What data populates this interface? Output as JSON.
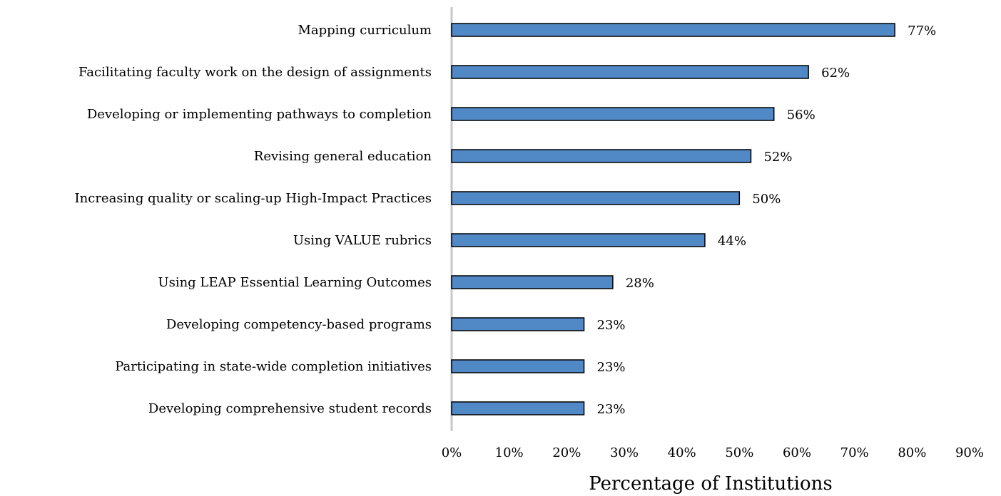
{
  "chart_data": {
    "type": "bar",
    "orientation": "horizontal",
    "x_label": "Percentage of Institutions",
    "categories": [
      "Mapping curriculum",
      "Facilitating faculty work on the design of assignments",
      "Developing or implementing pathways to completion",
      "Revising general education",
      "Increasing quality or scaling-up High-Impact Practices",
      "Using VALUE rubrics",
      "Using LEAP Essential Learning Outcomes",
      "Developing competency-based programs",
      "Participating in state-wide completion initiatives",
      "Developing comprehensive student records"
    ],
    "values": [
      77,
      62,
      56,
      52,
      50,
      44,
      28,
      23,
      23,
      23
    ],
    "value_labels": [
      "77%",
      "62%",
      "56%",
      "52%",
      "50%",
      "44%",
      "28%",
      "23%",
      "23%",
      "23%"
    ],
    "color": "#5089c6",
    "xlim": [
      0,
      90
    ],
    "xticks": [
      {
        "value": 0,
        "label": "0%"
      },
      {
        "value": 10,
        "label": "10%"
      },
      {
        "value": 20,
        "label": "20%"
      },
      {
        "value": 30,
        "label": "30%"
      },
      {
        "value": 40,
        "label": "40%"
      },
      {
        "value": 50,
        "label": "50%"
      },
      {
        "value": 60,
        "label": "60%"
      },
      {
        "value": 70,
        "label": "70%"
      },
      {
        "value": 80,
        "label": "80%"
      },
      {
        "value": 90,
        "label": "90%"
      }
    ],
    "grid": false
  }
}
